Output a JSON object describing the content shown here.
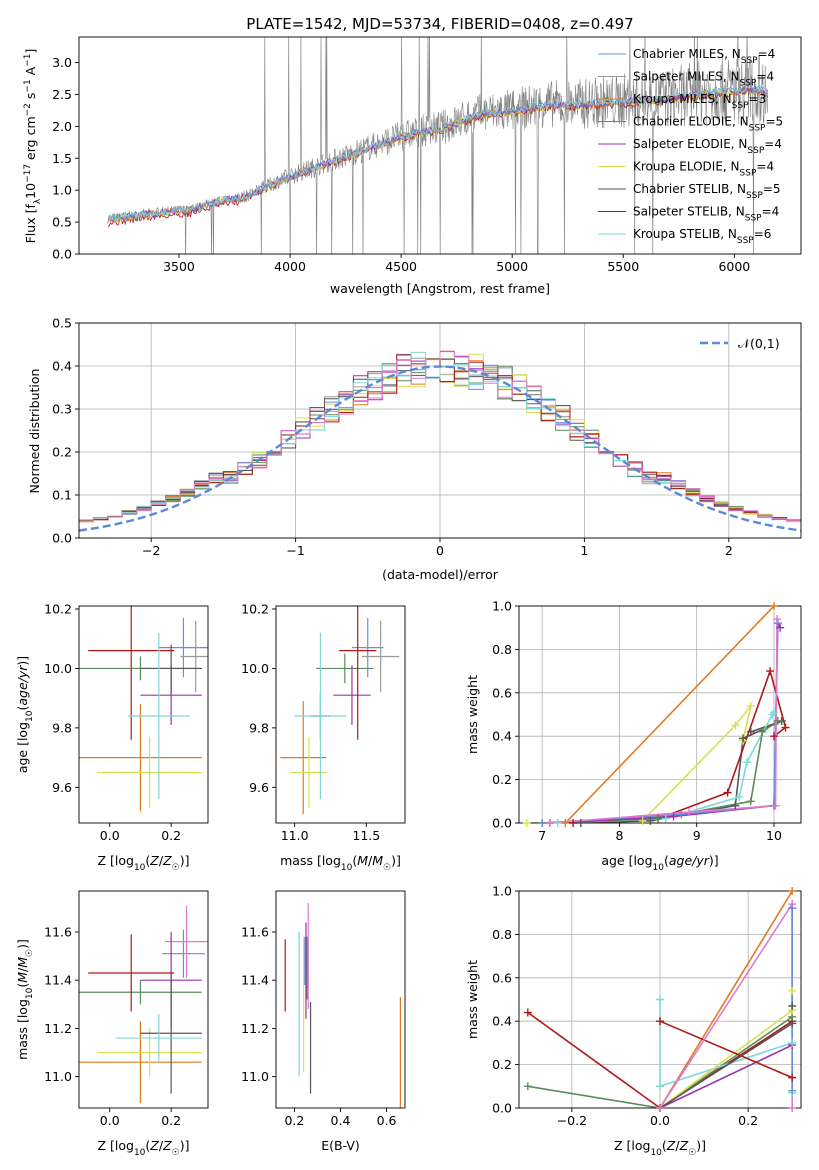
{
  "figure_title": "PLATE=1542, MJD=53734, FIBERID=0408, z=0.497",
  "colors": {
    "Chabrier MILES": "#6a8fd6",
    "Salpeter MILES": "#9a9a9a",
    "Kroupa MILES": "#e07b22",
    "Chabrier ELODIE": "#5b8c5b",
    "Salpeter ELODIE": "#9b30b0",
    "Kroupa ELODIE": "#d8e050",
    "Chabrier STELIB": "#555555",
    "Salpeter STELIB": "#b01818",
    "Kroupa STELIB": "#7fd8d8",
    "data": "#808080",
    "pink": "#e07ad0",
    "gaussian": "#5b8ad6"
  },
  "chart_data": [
    {
      "id": "spectrum",
      "type": "line",
      "title": "PLATE=1542, MJD=53734, FIBERID=0408, z=0.497",
      "xlabel": "wavelength [Angstrom, rest frame]",
      "ylabel": "Flux [f_λ10^-17 erg cm^-2 s^-1 A^-1]",
      "xlim": [
        3050,
        6300
      ],
      "ylim": [
        0,
        3.4
      ],
      "xticks": [
        "3500",
        "4000",
        "4500",
        "5000",
        "5500",
        "6000"
      ],
      "yticks": [
        "0.0",
        "0.5",
        "1.0",
        "1.5",
        "2.0",
        "2.5",
        "3.0"
      ],
      "legend_location": "right",
      "legend": [
        {
          "name": "Chabrier MILES",
          "nssp": "4"
        },
        {
          "name": "Salpeter MILES",
          "nssp": "4"
        },
        {
          "name": "Kroupa MILES",
          "nssp": "3"
        },
        {
          "name": "Chabrier ELODIE",
          "nssp": "5"
        },
        {
          "name": "Salpeter ELODIE",
          "nssp": "4"
        },
        {
          "name": "Kroupa ELODIE",
          "nssp": "4"
        },
        {
          "name": "Chabrier STELIB",
          "nssp": "5"
        },
        {
          "name": "Salpeter STELIB",
          "nssp": "4"
        },
        {
          "name": "Kroupa STELIB",
          "nssp": "6"
        }
      ],
      "continuum": {
        "x": [
          3180,
          3400,
          3550,
          3700,
          3800,
          3950,
          4100,
          4300,
          4500,
          4700,
          4850,
          5000,
          5150,
          5300,
          5500,
          5700,
          5900,
          6100,
          6150
        ],
        "y": [
          0.55,
          0.65,
          0.7,
          0.85,
          0.9,
          1.15,
          1.35,
          1.6,
          1.85,
          2.0,
          2.2,
          2.25,
          2.35,
          2.35,
          2.4,
          2.45,
          2.55,
          2.6,
          2.55
        ]
      }
    },
    {
      "id": "residuals",
      "type": "histogram",
      "xlabel": "(data-model)/error",
      "ylabel": "Normed distribution",
      "xlim": [
        -2.5,
        2.5
      ],
      "ylim": [
        0,
        0.5
      ],
      "xticks": [
        "−2",
        "−1",
        "0",
        "1",
        "2"
      ],
      "yticks": [
        "0.0",
        "0.1",
        "0.2",
        "0.3",
        "0.4",
        "0.5"
      ],
      "legend": "𝒩(0,1)",
      "legend_location": "upper right",
      "bin_width": 0.1
    },
    {
      "id": "age_vs_Z",
      "type": "errorbar",
      "xlabel": "Z [log₁₀(Z/Z☉)]",
      "ylabel": "age  [log₁₀(age/yr)]",
      "xlim": [
        -0.1,
        0.32
      ],
      "ylim": [
        9.48,
        10.21
      ],
      "xticks": [
        "0.0",
        "0.2"
      ],
      "yticks": [
        "9.6",
        "9.8",
        "10.0",
        "10.2"
      ],
      "points": [
        {
          "series": "Chabrier MILES",
          "x": 0.24,
          "xerr": 0.08,
          "y": 10.07,
          "yerr": 0.1
        },
        {
          "series": "Salpeter MILES",
          "x": 0.28,
          "xerr": 0.05,
          "y": 10.04,
          "yerr": 0.12
        },
        {
          "series": "Kroupa MILES",
          "x": 0.1,
          "xerr": 0.2,
          "y": 9.7,
          "yerr": 0.18
        },
        {
          "series": "Chabrier ELODIE",
          "x": 0.1,
          "xerr": 0.2,
          "y": 10.0,
          "yerr": 0.04
        },
        {
          "series": "Salpeter ELODIE",
          "x": 0.2,
          "xerr": 0.1,
          "y": 9.91,
          "yerr": 0.1
        },
        {
          "series": "Kroupa ELODIE",
          "x": 0.13,
          "xerr": 0.17,
          "y": 9.65,
          "yerr": 0.12
        },
        {
          "series": "Chabrier STELIB",
          "x": 0.2,
          "xerr": 0.1,
          "y": 10.0,
          "yerr": 0.08
        },
        {
          "series": "Salpeter STELIB",
          "x": 0.07,
          "xerr": 0.14,
          "y": 10.06,
          "yerr": 0.3
        },
        {
          "series": "Kroupa STELIB",
          "x": 0.16,
          "xerr": 0.1,
          "y": 9.84,
          "yerr": 0.28
        }
      ]
    },
    {
      "id": "age_vs_mass",
      "type": "errorbar",
      "xlabel": "mass [log₁₀(M/M☉)]",
      "ylabel": "",
      "xlim": [
        10.87,
        11.77
      ],
      "ylim": [
        9.48,
        10.21
      ],
      "xticks": [
        "11.0",
        "11.5"
      ],
      "yticks": [
        "9.6",
        "9.8",
        "10.0",
        "10.2"
      ],
      "points": [
        {
          "series": "Chabrier MILES",
          "x": 11.51,
          "xerr": 0.11,
          "y": 10.07,
          "yerr": 0.1
        },
        {
          "series": "Salpeter MILES",
          "x": 11.6,
          "xerr": 0.13,
          "y": 10.04,
          "yerr": 0.12
        },
        {
          "series": "Kroupa MILES",
          "x": 11.06,
          "xerr": 0.16,
          "y": 9.7,
          "yerr": 0.19
        },
        {
          "series": "Chabrier ELODIE",
          "x": 11.35,
          "xerr": 0.2,
          "y": 10.0,
          "yerr": 0.05
        },
        {
          "series": "Salpeter ELODIE",
          "x": 11.4,
          "xerr": 0.13,
          "y": 9.91,
          "yerr": 0.1
        },
        {
          "series": "Kroupa ELODIE",
          "x": 11.1,
          "xerr": 0.13,
          "y": 9.65,
          "yerr": 0.12
        },
        {
          "series": "Chabrier STELIB",
          "x": 11.18,
          "xerr": 0.07,
          "y": 9.84,
          "yerr": 0.08
        },
        {
          "series": "Salpeter STELIB",
          "x": 11.44,
          "xerr": 0.13,
          "y": 10.06,
          "yerr": 0.3
        },
        {
          "series": "Kroupa STELIB",
          "x": 11.18,
          "xerr": 0.18,
          "y": 9.84,
          "yerr": 0.28
        }
      ]
    },
    {
      "id": "weight_vs_age",
      "type": "line",
      "xlabel": "age  [log₁₀(age/yr)]",
      "ylabel": "mass weight",
      "xlim": [
        6.7,
        10.35
      ],
      "ylim": [
        0,
        1
      ],
      "xticks": [
        "7",
        "8",
        "9",
        "10"
      ],
      "yticks": [
        "0.0",
        "0.2",
        "0.4",
        "0.6",
        "0.8",
        "1.0"
      ],
      "series": [
        {
          "series": "Kroupa MILES",
          "x": [
            7.3,
            10.0
          ],
          "y": [
            0.0,
            1.0
          ]
        },
        {
          "series": "Kroupa ELODIE",
          "x": [
            6.8,
            8.3,
            9.5,
            9.7,
            9.6
          ],
          "y": [
            0.0,
            0.01,
            0.45,
            0.54,
            0.38
          ]
        },
        {
          "series": "Chabrier STELIB",
          "x": [
            7.5,
            8.4,
            9.5,
            9.6,
            10.1,
            9.7
          ],
          "y": [
            0.0,
            0.01,
            0.08,
            0.39,
            0.47,
            0.42
          ]
        },
        {
          "series": "Salpeter STELIB",
          "x": [
            7.4,
            8.5,
            9.4,
            9.95,
            10.15,
            10.0
          ],
          "y": [
            0.0,
            0.02,
            0.14,
            0.7,
            0.44,
            0.4
          ]
        },
        {
          "series": "Kroupa STELIB",
          "x": [
            7.2,
            8.6,
            9.55,
            9.65,
            9.98,
            10.0
          ],
          "y": [
            0.0,
            0.02,
            0.12,
            0.28,
            0.5,
            0.51
          ]
        },
        {
          "series": "Chabrier ELODIE",
          "x": [
            7.0,
            8.5,
            9.7,
            9.85,
            10.05
          ],
          "y": [
            0.0,
            0.02,
            0.1,
            0.42,
            0.47
          ]
        },
        {
          "series": "Salpeter ELODIE",
          "x": [
            7.1,
            8.7,
            10.0,
            10.05,
            10.08
          ],
          "y": [
            0.0,
            0.03,
            0.08,
            0.92,
            0.9
          ]
        },
        {
          "series": "Chabrier MILES",
          "x": [
            7.0,
            8.8,
            10.0,
            10.05
          ],
          "y": [
            0.0,
            0.04,
            0.08,
            0.92
          ]
        },
        {
          "series": "pink",
          "x": [
            7.1,
            8.9,
            10.02,
            10.04
          ],
          "y": [
            0.0,
            0.05,
            0.08,
            0.94
          ]
        }
      ]
    },
    {
      "id": "mass_vs_Z",
      "type": "errorbar",
      "xlabel": "Z [log₁₀(Z/Z☉)]",
      "ylabel": "mass [log₁₀(M/M☉)]",
      "xlim": [
        -0.1,
        0.32
      ],
      "ylim": [
        10.87,
        11.77
      ],
      "xticks": [
        "0.0",
        "0.2"
      ],
      "yticks": [
        "11.0",
        "11.2",
        "11.4",
        "11.6"
      ],
      "points": [
        {
          "series": "Chabrier MILES",
          "x": 0.24,
          "xerr": 0.07,
          "y": 11.51,
          "yerr": 0.1
        },
        {
          "series": "pink",
          "x": 0.25,
          "xerr": 0.07,
          "y": 11.56,
          "yerr": 0.15
        },
        {
          "series": "Kroupa MILES",
          "x": 0.1,
          "xerr": 0.2,
          "y": 11.06,
          "yerr": 0.17
        },
        {
          "series": "Chabrier ELODIE",
          "x": 0.1,
          "xerr": 0.2,
          "y": 11.35,
          "yerr": 0.05
        },
        {
          "series": "Salpeter ELODIE",
          "x": 0.2,
          "xerr": 0.1,
          "y": 11.4,
          "yerr": 0.2
        },
        {
          "series": "Kroupa ELODIE",
          "x": 0.13,
          "xerr": 0.17,
          "y": 11.1,
          "yerr": 0.1
        },
        {
          "series": "Chabrier STELIB",
          "x": 0.2,
          "xerr": 0.1,
          "y": 11.18,
          "yerr": 0.25
        },
        {
          "series": "Salpeter STELIB",
          "x": 0.07,
          "xerr": 0.14,
          "y": 11.43,
          "yerr": 0.16
        },
        {
          "series": "Kroupa STELIB",
          "x": 0.16,
          "xerr": 0.14,
          "y": 11.16,
          "yerr": 0.1
        }
      ]
    },
    {
      "id": "mass_vs_ebv",
      "type": "errorbar",
      "xlabel": "E(B-V)",
      "ylabel": "",
      "xlim": [
        0.12,
        0.68
      ],
      "ylim": [
        10.87,
        11.77
      ],
      "xticks": [
        "0.2",
        "0.4",
        "0.6"
      ],
      "yticks": [
        "11.0",
        "11.2",
        "11.4",
        "11.6"
      ],
      "points": [
        {
          "series": "Salpeter STELIB",
          "x": 0.16,
          "y": 11.42,
          "yerr": 0.15
        },
        {
          "series": "Kroupa STELIB",
          "x": 0.22,
          "y": 11.3,
          "yerr": 0.3
        },
        {
          "series": "Kroupa ELODIE",
          "x": 0.24,
          "y": 11.3,
          "yerr": 0.28
        },
        {
          "series": "Salpeter ELODIE",
          "x": 0.25,
          "y": 11.44,
          "yerr": 0.2
        },
        {
          "series": "pink",
          "x": 0.26,
          "y": 11.5,
          "yerr": 0.22
        },
        {
          "series": "Chabrier ELODIE",
          "x": 0.255,
          "y": 11.45,
          "yerr": 0.13
        },
        {
          "series": "Chabrier MILES",
          "x": 0.245,
          "y": 11.48,
          "yerr": 0.1
        },
        {
          "series": "Chabrier STELIB",
          "x": 0.27,
          "y": 11.12,
          "yerr": 0.19
        },
        {
          "series": "Kroupa MILES",
          "x": 0.66,
          "y": 11.1,
          "yerr": 0.23
        }
      ]
    },
    {
      "id": "weight_vs_Z",
      "type": "line",
      "xlabel": "Z [log₁₀(Z/Z☉)]",
      "ylabel": "mass weight",
      "xlim": [
        -0.32,
        0.32
      ],
      "ylim": [
        0,
        1
      ],
      "xticks": [
        "−0.2",
        "0.0",
        "0.2"
      ],
      "yticks": [
        "0.0",
        "0.2",
        "0.4",
        "0.6",
        "0.8",
        "1.0"
      ],
      "series": [
        {
          "series": "Salpeter STELIB",
          "x": [
            -0.3,
            0.0,
            0.3
          ],
          "y": [
            0.44,
            0.0,
            0.4
          ]
        },
        {
          "series": "Chabrier ELODIE",
          "x": [
            -0.3,
            0.0,
            0.3
          ],
          "y": [
            0.1,
            0.0,
            0.42
          ]
        },
        {
          "series": "Kroupa MILES",
          "x": [
            0.0,
            0.3
          ],
          "y": [
            0.0,
            1.0
          ]
        },
        {
          "series": "Salpeter ELODIE",
          "x": [
            0.0,
            0.3,
            0.3
          ],
          "y": [
            0.0,
            0.29,
            0.92
          ]
        },
        {
          "series": "Kroupa STELIB",
          "x": [
            0.0,
            0.0,
            0.3,
            0.3
          ],
          "y": [
            0.5,
            0.1,
            0.3,
            0.07
          ]
        },
        {
          "series": "Kroupa ELODIE",
          "x": [
            0.0,
            0.3,
            0.3
          ],
          "y": [
            0.0,
            0.45,
            0.54
          ]
        },
        {
          "series": "Chabrier STELIB",
          "x": [
            0.0,
            0.3,
            0.3
          ],
          "y": [
            0.0,
            0.39,
            0.47
          ]
        },
        {
          "series": "Salpeter STELIB",
          "x": [
            0.0,
            0.3
          ],
          "y": [
            0.4,
            0.14
          ]
        },
        {
          "series": "pink",
          "x": [
            0.0,
            0.3,
            0.3
          ],
          "y": [
            0.0,
            0.94,
            0.0
          ]
        },
        {
          "series": "Chabrier MILES",
          "x": [
            0.3,
            0.3
          ],
          "y": [
            0.92,
            0.08
          ]
        }
      ]
    }
  ]
}
